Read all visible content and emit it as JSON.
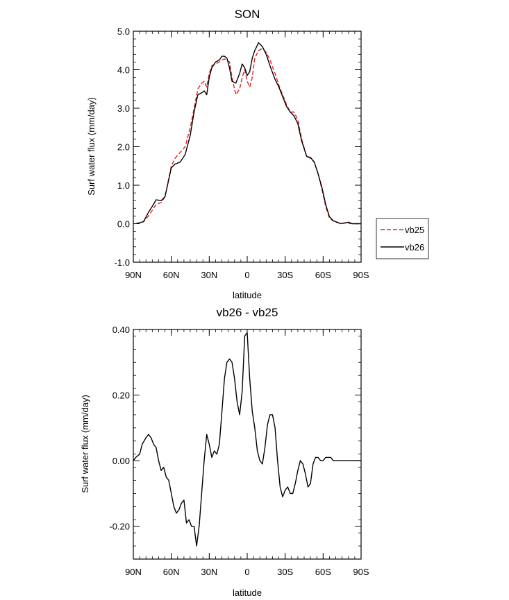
{
  "chart_data": [
    {
      "type": "line",
      "title": "SON",
      "xlabel": "latitude",
      "ylabel": "Surf water flux (mm/day)",
      "xlim": [
        90,
        -90
      ],
      "ylim": [
        -1.0,
        5.0
      ],
      "x_ticks": [
        90,
        60,
        30,
        0,
        -30,
        -60,
        -90
      ],
      "x_tick_labels": [
        "90N",
        "60N",
        "30N",
        "0",
        "30S",
        "60S",
        "90S"
      ],
      "y_ticks": [
        -1.0,
        0.0,
        1.0,
        2.0,
        3.0,
        4.0,
        5.0
      ],
      "y_tick_labels": [
        "-1.0",
        "0.0",
        "1.0",
        "2.0",
        "3.0",
        "4.0",
        "5.0"
      ],
      "legend_position": "outside-right",
      "series": [
        {
          "name": "vb25",
          "color": "#e02020",
          "dash": "dashed",
          "x": [
            88,
            82,
            78,
            75,
            72,
            68,
            65,
            60,
            57,
            53,
            49,
            45,
            42,
            39,
            36,
            34,
            32,
            30,
            28,
            25,
            22,
            20,
            18,
            16,
            14,
            12,
            9,
            6,
            4,
            2,
            0,
            -2,
            -4,
            -6,
            -9,
            -12,
            -15,
            -18,
            -22,
            -25,
            -28,
            -31,
            -34,
            -37,
            -40,
            -43,
            -47,
            -50,
            -53,
            -56,
            -59,
            -62,
            -65,
            -68,
            -71,
            -74,
            -77,
            -80,
            -83,
            -86,
            -90
          ],
          "y": [
            0.0,
            0.05,
            0.2,
            0.35,
            0.5,
            0.55,
            0.7,
            1.5,
            1.7,
            1.85,
            2.0,
            2.5,
            3.0,
            3.5,
            3.65,
            3.7,
            3.55,
            3.9,
            4.1,
            4.15,
            4.2,
            4.25,
            4.28,
            4.25,
            4.2,
            3.8,
            3.35,
            3.5,
            3.8,
            4.0,
            3.7,
            3.55,
            3.8,
            4.3,
            4.5,
            4.55,
            4.45,
            4.25,
            3.9,
            3.6,
            3.35,
            3.1,
            2.9,
            2.9,
            2.7,
            2.2,
            1.75,
            1.7,
            1.6,
            1.3,
            0.9,
            0.45,
            0.15,
            0.07,
            0.03,
            0.01,
            0.02,
            0.01,
            0.0,
            0.0,
            0.0
          ]
        },
        {
          "name": "vb26",
          "color": "#000000",
          "dash": "solid",
          "x": [
            88,
            82,
            78,
            75,
            72,
            68,
            65,
            60,
            57,
            53,
            49,
            45,
            42,
            39,
            36,
            34,
            32,
            30,
            28,
            25,
            22,
            20,
            18,
            16,
            14,
            12,
            9,
            6,
            4,
            2,
            0,
            -2,
            -4,
            -6,
            -9,
            -12,
            -15,
            -18,
            -22,
            -25,
            -28,
            -31,
            -34,
            -37,
            -40,
            -43,
            -47,
            -50,
            -53,
            -56,
            -59,
            -62,
            -65,
            -68,
            -71,
            -74,
            -77,
            -80,
            -83,
            -86,
            -90
          ],
          "y": [
            0.0,
            0.05,
            0.3,
            0.45,
            0.62,
            0.6,
            0.7,
            1.45,
            1.55,
            1.6,
            1.8,
            2.3,
            2.9,
            3.35,
            3.4,
            3.45,
            3.35,
            3.8,
            4.05,
            4.2,
            4.25,
            4.35,
            4.35,
            4.3,
            4.05,
            3.7,
            3.65,
            3.9,
            4.15,
            4.05,
            3.85,
            3.95,
            4.3,
            4.5,
            4.7,
            4.6,
            4.4,
            4.1,
            3.75,
            3.55,
            3.3,
            3.05,
            2.9,
            2.8,
            2.6,
            2.15,
            1.75,
            1.72,
            1.6,
            1.3,
            0.95,
            0.5,
            0.18,
            0.08,
            0.04,
            0.0,
            0.02,
            0.04,
            0.0,
            0.0,
            0.0
          ]
        }
      ]
    },
    {
      "type": "line",
      "title": "vb26 - vb25",
      "xlabel": "latitude",
      "ylabel": "Surf water flux (mm/day)",
      "xlim": [
        90,
        -90
      ],
      "ylim": [
        -0.3,
        0.4
      ],
      "x_ticks": [
        90,
        60,
        30,
        0,
        -30,
        -60,
        -90
      ],
      "x_tick_labels": [
        "90N",
        "60N",
        "30N",
        "0",
        "30S",
        "60S",
        "90S"
      ],
      "y_ticks": [
        -0.2,
        0.0,
        0.2,
        0.4
      ],
      "y_tick_labels": [
        "-0.20",
        "0.00",
        "0.20",
        "0.40"
      ],
      "series": [
        {
          "color": "#000000",
          "dash": "solid",
          "x": [
            90,
            88,
            85,
            83,
            80,
            78,
            76,
            74,
            72,
            70,
            68,
            66,
            64,
            62,
            60,
            58,
            56,
            54,
            52,
            50,
            48,
            46,
            44,
            42,
            40,
            38,
            36,
            34,
            32,
            30,
            28,
            26,
            24,
            22,
            20,
            18,
            16,
            14,
            12,
            10,
            8,
            6,
            4,
            2,
            0,
            -2,
            -4,
            -6,
            -8,
            -10,
            -12,
            -14,
            -16,
            -18,
            -20,
            -22,
            -24,
            -26,
            -28,
            -30,
            -32,
            -34,
            -36,
            -38,
            -40,
            -42,
            -44,
            -46,
            -48,
            -50,
            -52,
            -54,
            -56,
            -58,
            -60,
            -62,
            -64,
            -66,
            -68,
            -70,
            -72,
            -74,
            -76,
            -78,
            -80,
            -82,
            -84,
            -86,
            -88,
            -90
          ],
          "y": [
            0.0,
            0.01,
            0.02,
            0.05,
            0.07,
            0.08,
            0.07,
            0.05,
            0.04,
            0.0,
            -0.03,
            -0.02,
            -0.05,
            -0.06,
            -0.1,
            -0.14,
            -0.16,
            -0.15,
            -0.13,
            -0.12,
            -0.19,
            -0.18,
            -0.2,
            -0.2,
            -0.26,
            -0.2,
            -0.1,
            0.0,
            0.08,
            0.05,
            0.01,
            0.03,
            0.02,
            0.05,
            0.15,
            0.25,
            0.3,
            0.31,
            0.3,
            0.25,
            0.18,
            0.14,
            0.21,
            0.38,
            0.39,
            0.25,
            0.15,
            0.1,
            0.03,
            0.0,
            -0.01,
            0.04,
            0.11,
            0.14,
            0.14,
            0.1,
            0.0,
            -0.08,
            -0.11,
            -0.09,
            -0.08,
            -0.1,
            -0.1,
            -0.07,
            -0.03,
            0.0,
            -0.01,
            -0.04,
            -0.08,
            -0.07,
            -0.01,
            0.01,
            0.01,
            0.0,
            0.0,
            0.01,
            0.01,
            0.01,
            0.0,
            0.0,
            0.0,
            0.0,
            0.0,
            0.0,
            0.0,
            0.0,
            0.0,
            0.0,
            0.0,
            0.0
          ]
        }
      ]
    }
  ]
}
